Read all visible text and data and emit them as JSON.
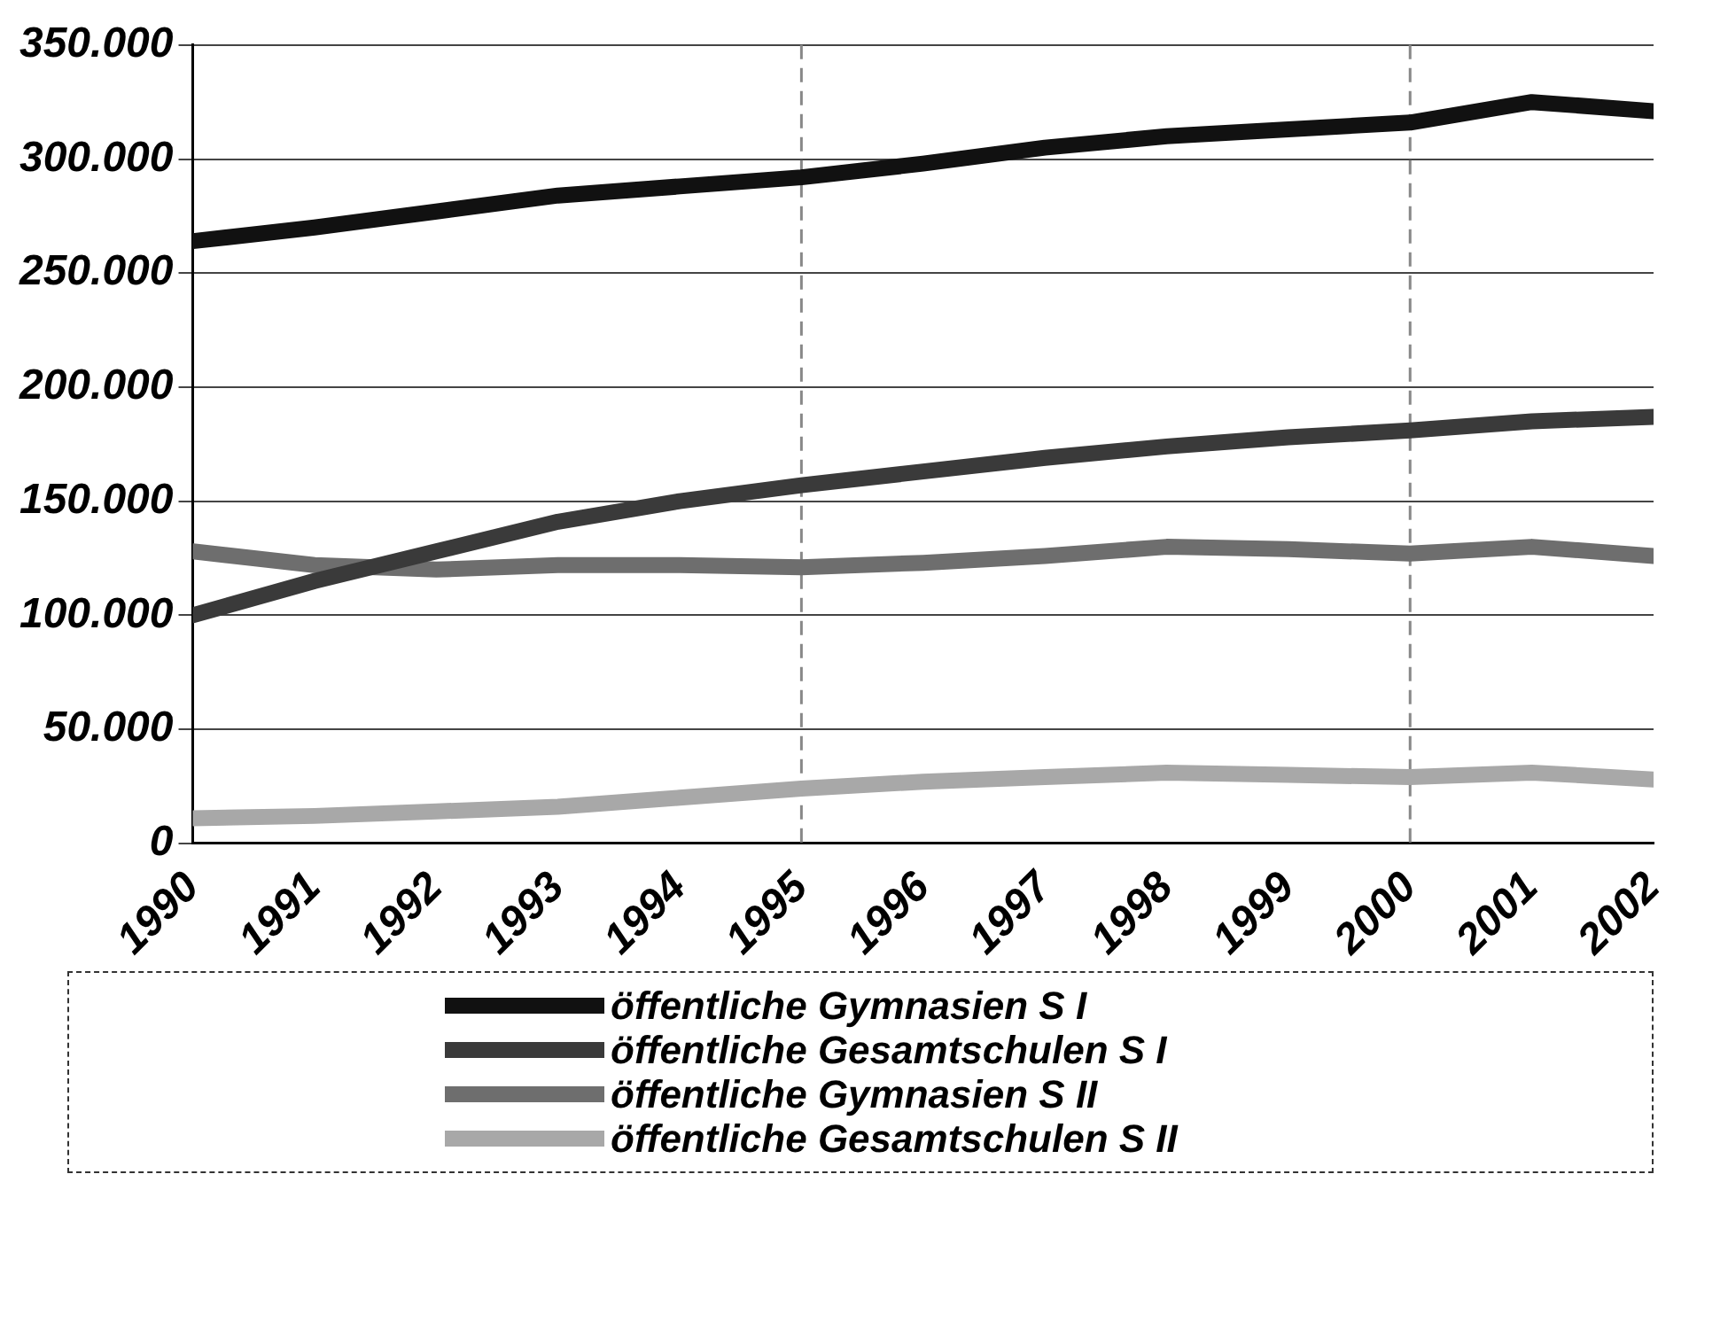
{
  "chart_data": {
    "type": "line",
    "x": [
      1990,
      1991,
      1992,
      1993,
      1994,
      1995,
      1996,
      1997,
      1998,
      1999,
      2000,
      2001,
      2002
    ],
    "xlim": [
      1990,
      2002
    ],
    "xticks": [
      1990,
      1991,
      1992,
      1993,
      1994,
      1995,
      1996,
      1997,
      1998,
      1999,
      2000,
      2001,
      2002
    ],
    "ylim": [
      0,
      350000
    ],
    "yticks": [
      0,
      {
        "value": 50000,
        "label": "50.000"
      },
      {
        "value": 100000,
        "label": "100.000"
      },
      {
        "value": 150000,
        "label": "150.000"
      },
      {
        "value": 200000,
        "label": "200.000"
      },
      {
        "value": 250000,
        "label": "250.000"
      },
      {
        "value": 300000,
        "label": "300.000"
      },
      {
        "value": 350000,
        "label": "350.000"
      }
    ],
    "grid": "y",
    "legend": "bottom",
    "marker": "none",
    "line_style": "solid",
    "ref_lines": [
      {
        "axis": "x",
        "value": 1995,
        "line_style": "dashed",
        "color": "#888888"
      },
      {
        "axis": "x",
        "value": 2000,
        "line_style": "dashed",
        "color": "#888888"
      }
    ],
    "series": [
      {
        "name": "öffentliche Gymnasien S I",
        "color": "#111111",
        "values": [
          264000,
          270000,
          277000,
          284000,
          288000,
          292000,
          298000,
          305000,
          310000,
          313000,
          316000,
          325000,
          321000
        ]
      },
      {
        "name": "öffentliche Gesamtschulen S I",
        "color": "#3a3a3a",
        "values": [
          100000,
          115000,
          128000,
          141000,
          150000,
          157000,
          163000,
          169000,
          174000,
          178000,
          181000,
          185000,
          187000
        ]
      },
      {
        "name": "öffentliche Gymnasien S II",
        "color": "#6e6e6e",
        "values": [
          128000,
          122000,
          120000,
          122000,
          122000,
          121000,
          123000,
          126000,
          130000,
          129000,
          127000,
          130000,
          126000
        ]
      },
      {
        "name": "öffentliche Gesamtschulen S II",
        "color": "#a8a8a8",
        "values": [
          11000,
          12000,
          14000,
          16000,
          20000,
          24000,
          27000,
          29000,
          31000,
          30000,
          29000,
          31000,
          28000
        ]
      }
    ]
  }
}
